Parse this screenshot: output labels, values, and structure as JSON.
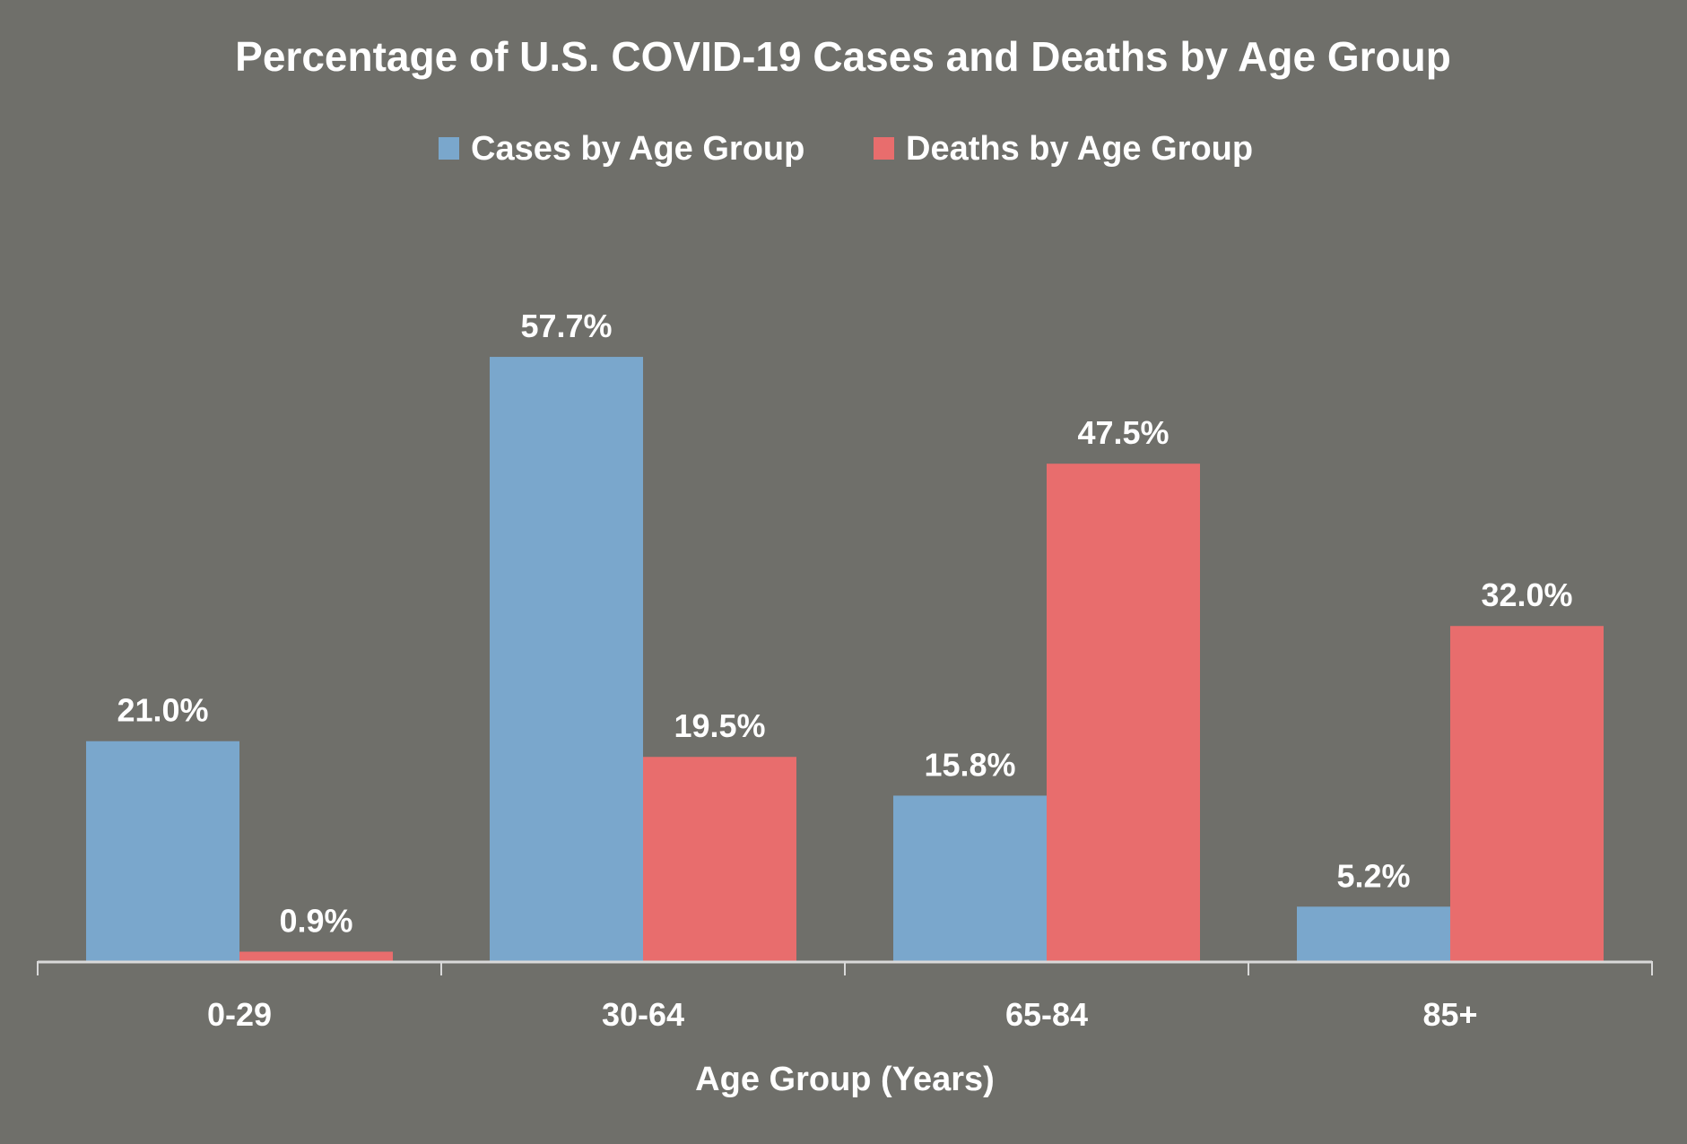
{
  "colors": {
    "background": "#6f6f6a",
    "cases": "#7aa7cc",
    "deaths": "#e86d6d",
    "axis": "#d9d9d9",
    "text": "#ffffff"
  },
  "chart_data": {
    "type": "bar",
    "title": "Percentage of U.S. COVID-19 Cases and Deaths by Age Group",
    "xlabel": "Age Group (Years)",
    "ylabel": "",
    "categories": [
      "0-29",
      "30-64",
      "65-84",
      "85+"
    ],
    "series": [
      {
        "name": "Cases by Age Group",
        "color": "#7aa7cc",
        "values": [
          21.0,
          57.7,
          15.8,
          5.2
        ],
        "labels": [
          "21.0%",
          "57.7%",
          "15.8%",
          "5.2%"
        ]
      },
      {
        "name": "Deaths by Age Group",
        "color": "#e86d6d",
        "values": [
          0.9,
          19.5,
          47.5,
          32.0
        ],
        "labels": [
          "0.9%",
          "19.5%",
          "47.5%",
          "32.0%"
        ]
      }
    ],
    "ylim": [
      0,
      60
    ],
    "grid": false,
    "y_axis_visible": false,
    "legend_position": "top-center",
    "data_labels": true
  }
}
